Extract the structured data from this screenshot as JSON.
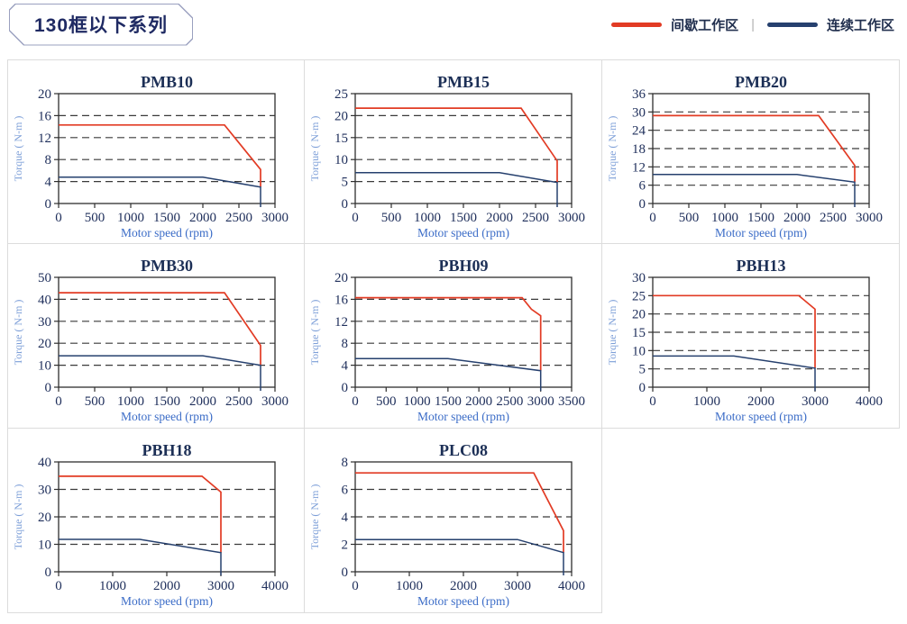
{
  "header": {
    "title": "130框以下系列"
  },
  "legend": {
    "separator": "|",
    "items": [
      {
        "label": "间歇工作区",
        "color": "#e23b24"
      },
      {
        "label": "连续工作区",
        "color": "#26406e"
      }
    ]
  },
  "colors": {
    "intermittent": "#e23b24",
    "continuous": "#26406e",
    "plot_border": "#2e2e2e",
    "gridline": "#3a3a3a",
    "tick_label": "#20305c",
    "chart_title": "#1c2f56",
    "xlabel_text": "#3b6cc7",
    "ylabel_text": "#7d9fd8",
    "cell_border": "#dcdcdc"
  },
  "chart_data": [
    {
      "type": "line",
      "title": "PMB10",
      "xlabel": "Motor speed (rpm)",
      "ylabel": "Torque ( N-m )",
      "xlim": [
        0,
        3000
      ],
      "xtick_step": 500,
      "ylim": [
        0,
        20
      ],
      "ytick_step": 4,
      "grid": "dashed-horizontal",
      "series": [
        {
          "name": "间歇工作区",
          "key": "intermittent",
          "points": [
            [
              0,
              14.3
            ],
            [
              2300,
              14.3
            ],
            [
              2800,
              6.2
            ],
            [
              2800,
              3.0
            ]
          ]
        },
        {
          "name": "连续工作区",
          "key": "continuous",
          "points": [
            [
              0,
              4.8
            ],
            [
              2000,
              4.8
            ],
            [
              2800,
              3.0
            ],
            [
              2800,
              0
            ]
          ]
        }
      ]
    },
    {
      "type": "line",
      "title": "PMB15",
      "xlabel": "Motor speed (rpm)",
      "ylabel": "Torque ( N-m )",
      "xlim": [
        0,
        3000
      ],
      "xtick_step": 500,
      "ylim": [
        0,
        25
      ],
      "ytick_step": 5,
      "grid": "dashed-horizontal",
      "series": [
        {
          "name": "间歇工作区",
          "key": "intermittent",
          "points": [
            [
              0,
              21.7
            ],
            [
              2300,
              21.7
            ],
            [
              2800,
              9.7
            ],
            [
              2800,
              4.8
            ]
          ]
        },
        {
          "name": "连续工作区",
          "key": "continuous",
          "points": [
            [
              0,
              7.0
            ],
            [
              2000,
              7.0
            ],
            [
              2800,
              4.8
            ],
            [
              2800,
              0
            ]
          ]
        }
      ]
    },
    {
      "type": "line",
      "title": "PMB20",
      "xlabel": "Motor speed (rpm)",
      "ylabel": "Torque ( N-m )",
      "xlim": [
        0,
        3000
      ],
      "xtick_step": 500,
      "ylim": [
        0,
        36
      ],
      "ytick_step": 6,
      "grid": "dashed-horizontal",
      "series": [
        {
          "name": "间歇工作区",
          "key": "intermittent",
          "points": [
            [
              0,
              28.8
            ],
            [
              2300,
              28.8
            ],
            [
              2800,
              12.5
            ],
            [
              2800,
              7.0
            ]
          ]
        },
        {
          "name": "连续工作区",
          "key": "continuous",
          "points": [
            [
              0,
              9.5
            ],
            [
              2000,
              9.5
            ],
            [
              2800,
              7.0
            ],
            [
              2800,
              0
            ]
          ]
        }
      ]
    },
    {
      "type": "line",
      "title": "PMB30",
      "xlabel": "Motor speed (rpm)",
      "ylabel": "Torque ( N-m )",
      "xlim": [
        0,
        3000
      ],
      "xtick_step": 500,
      "ylim": [
        0,
        50
      ],
      "ytick_step": 10,
      "grid": "dashed-horizontal",
      "series": [
        {
          "name": "间歇工作区",
          "key": "intermittent",
          "points": [
            [
              0,
              43
            ],
            [
              2300,
              43
            ],
            [
              2800,
              19
            ],
            [
              2800,
              10
            ]
          ]
        },
        {
          "name": "连续工作区",
          "key": "continuous",
          "points": [
            [
              0,
              14.3
            ],
            [
              2000,
              14.3
            ],
            [
              2800,
              10
            ],
            [
              2800,
              0
            ]
          ]
        }
      ]
    },
    {
      "type": "line",
      "title": "PBH09",
      "xlabel": "Motor speed (rpm)",
      "ylabel": "Torque ( N-m )",
      "xlim": [
        0,
        3500
      ],
      "xtick_step": 500,
      "ylim": [
        0,
        20
      ],
      "ytick_step": 4,
      "grid": "dashed-horizontal",
      "series": [
        {
          "name": "间歇工作区",
          "key": "intermittent",
          "points": [
            [
              0,
              16.3
            ],
            [
              2700,
              16.3
            ],
            [
              2850,
              14.2
            ],
            [
              3000,
              13
            ],
            [
              3000,
              3
            ]
          ]
        },
        {
          "name": "连续工作区",
          "key": "continuous",
          "points": [
            [
              0,
              5.2
            ],
            [
              1500,
              5.2
            ],
            [
              3000,
              3
            ],
            [
              3000,
              0
            ]
          ]
        }
      ]
    },
    {
      "type": "line",
      "title": "PBH13",
      "xlabel": "Motor speed (rpm)",
      "ylabel": "Torque ( N-m )",
      "xlim": [
        0,
        4000
      ],
      "xtick_step": 1000,
      "ylim": [
        0,
        30
      ],
      "ytick_step": 5,
      "grid": "dashed-horizontal",
      "series": [
        {
          "name": "间歇工作区",
          "key": "intermittent",
          "points": [
            [
              0,
              25
            ],
            [
              2700,
              25
            ],
            [
              3000,
              21.3
            ],
            [
              3000,
              5.2
            ]
          ]
        },
        {
          "name": "连续工作区",
          "key": "continuous",
          "points": [
            [
              0,
              8.5
            ],
            [
              1500,
              8.5
            ],
            [
              3000,
              5.2
            ],
            [
              3000,
              0
            ]
          ]
        }
      ]
    },
    {
      "type": "line",
      "title": "PBH18",
      "xlabel": "Motor speed (rpm)",
      "ylabel": "Torque ( N-m )",
      "xlim": [
        0,
        4000
      ],
      "xtick_step": 1000,
      "ylim": [
        0,
        40
      ],
      "ytick_step": 10,
      "grid": "dashed-horizontal",
      "series": [
        {
          "name": "间歇工作区",
          "key": "intermittent",
          "points": [
            [
              0,
              34.8
            ],
            [
              2650,
              34.8
            ],
            [
              3000,
              29
            ],
            [
              3000,
              7
            ]
          ]
        },
        {
          "name": "连续工作区",
          "key": "continuous",
          "points": [
            [
              0,
              11.8
            ],
            [
              1500,
              11.8
            ],
            [
              3000,
              7
            ],
            [
              3000,
              0
            ]
          ]
        }
      ]
    },
    {
      "type": "line",
      "title": "PLC08",
      "xlabel": "Motor speed (rpm)",
      "ylabel": "Torque ( N-m )",
      "xlim": [
        0,
        4000
      ],
      "xtick_step": 1000,
      "ylim": [
        0,
        8
      ],
      "ytick_step": 2,
      "grid": "dashed-horizontal",
      "series": [
        {
          "name": "间歇工作区",
          "key": "intermittent",
          "points": [
            [
              0,
              7.2
            ],
            [
              3300,
              7.2
            ],
            [
              3850,
              3
            ],
            [
              3850,
              1.4
            ]
          ]
        },
        {
          "name": "连续工作区",
          "key": "continuous",
          "points": [
            [
              0,
              2.35
            ],
            [
              3000,
              2.35
            ],
            [
              3850,
              1.4
            ],
            [
              3850,
              0
            ]
          ]
        }
      ]
    }
  ]
}
